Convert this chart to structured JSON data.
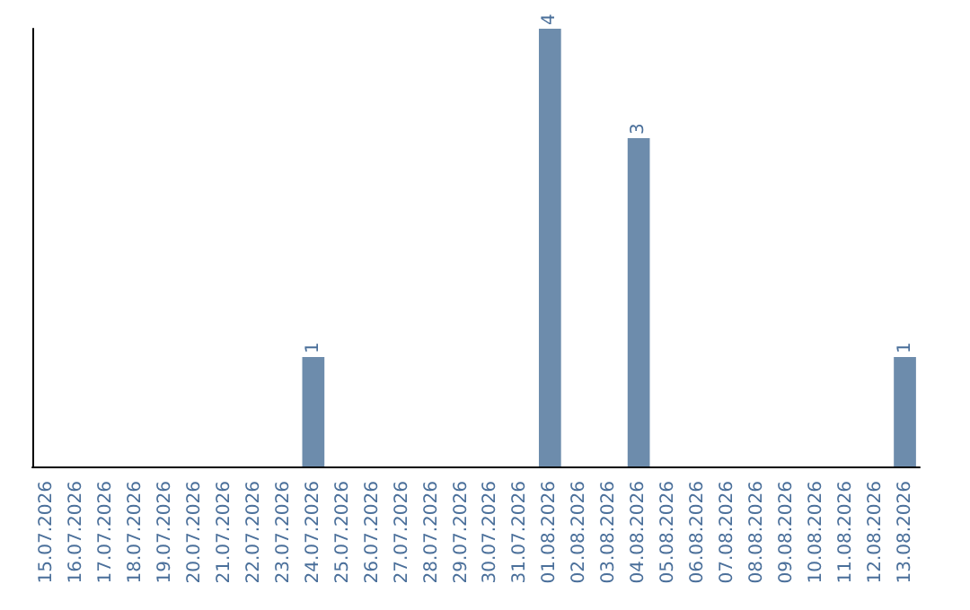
{
  "chart_data": {
    "type": "bar",
    "categories": [
      "15.07.2026",
      "16.07.2026",
      "17.07.2026",
      "18.07.2026",
      "19.07.2026",
      "20.07.2026",
      "21.07.2026",
      "22.07.2026",
      "23.07.2026",
      "24.07.2026",
      "25.07.2026",
      "26.07.2026",
      "27.07.2026",
      "28.07.2026",
      "29.07.2026",
      "30.07.2026",
      "31.07.2026",
      "01.08.2026",
      "02.08.2026",
      "03.08.2026",
      "04.08.2026",
      "05.08.2026",
      "06.08.2026",
      "07.08.2026",
      "08.08.2026",
      "09.08.2026",
      "10.08.2026",
      "11.08.2026",
      "12.08.2026",
      "13.08.2026"
    ],
    "values": [
      0,
      0,
      0,
      0,
      0,
      0,
      0,
      0,
      0,
      1,
      0,
      0,
      0,
      0,
      0,
      0,
      0,
      4,
      0,
      0,
      3,
      0,
      0,
      0,
      0,
      0,
      0,
      0,
      0,
      1
    ],
    "value_labels": [
      null,
      null,
      null,
      null,
      null,
      null,
      null,
      null,
      null,
      "1",
      null,
      null,
      null,
      null,
      null,
      null,
      null,
      "4",
      null,
      null,
      "3",
      null,
      null,
      null,
      null,
      null,
      null,
      null,
      null,
      "1"
    ],
    "color": "#6d8cac",
    "tick_labels": "x",
    "grid": false
  }
}
